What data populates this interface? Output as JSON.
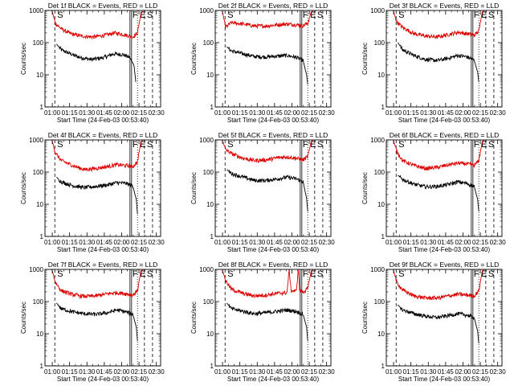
{
  "figure": {
    "ylabel": "Counts/sec",
    "xlabel": "Start Time (24-Feb-03 00:53:40)",
    "ytick_labels": [
      "1",
      "10",
      "100",
      "1000"
    ],
    "xtick_labels": [
      "01:00",
      "01:15",
      "01:30",
      "01:45",
      "02:00",
      "02:15",
      "02:30"
    ],
    "event_labels": {
      "start": "S",
      "flare": "F",
      "end": "E"
    },
    "colors": {
      "events": "#000000",
      "lld": "#dd0000",
      "axis": "#000000"
    }
  },
  "chart_data": [
    {
      "type": "line",
      "title": "Det 1f BLACK = Events, RED = LLD",
      "x_unit": "minutes after 00:53:40",
      "xlim": [
        0,
        100
      ],
      "ylim": [
        1,
        1000
      ],
      "yscale": "log",
      "events": {
        "S": 8.5,
        "F": 73.5,
        "E": 80,
        "S2": 86
      },
      "series": [
        {
          "name": "Events",
          "values": [
            [
              10,
              90
            ],
            [
              14,
              60
            ],
            [
              22,
              45
            ],
            [
              30,
              35
            ],
            [
              40,
              30
            ],
            [
              50,
              34
            ],
            [
              60,
              45
            ],
            [
              68,
              42
            ],
            [
              73,
              35
            ],
            [
              77,
              20
            ],
            [
              78.5,
              6
            ]
          ]
        },
        {
          "name": "LLD",
          "values": [
            [
              6,
              1000
            ],
            [
              9,
              400
            ],
            [
              14,
              270
            ],
            [
              22,
              190
            ],
            [
              32,
              160
            ],
            [
              42,
              150
            ],
            [
              52,
              170
            ],
            [
              60,
              200
            ],
            [
              68,
              180
            ],
            [
              76,
              150
            ],
            [
              80,
              200
            ],
            [
              83,
              800
            ],
            [
              85,
              1000
            ]
          ]
        }
      ]
    },
    {
      "type": "line",
      "title": "Det 2f BLACK = Events, RED = LLD",
      "x_unit": "minutes after 00:53:40",
      "xlim": [
        0,
        100
      ],
      "ylim": [
        1,
        1000
      ],
      "yscale": "log",
      "events": {
        "S": 8.5,
        "F": 73.5,
        "E": 80,
        "S2": 86
      },
      "series": [
        {
          "name": "Events",
          "values": [
            [
              10,
              75
            ],
            [
              14,
              55
            ],
            [
              24,
              45
            ],
            [
              34,
              37
            ],
            [
              44,
              36
            ],
            [
              54,
              38
            ],
            [
              62,
              40
            ],
            [
              70,
              35
            ],
            [
              76,
              28
            ],
            [
              79,
              10
            ],
            [
              80,
              5
            ]
          ]
        },
        {
          "name": "LLD",
          "values": [
            [
              6,
              1000
            ],
            [
              9,
              300
            ],
            [
              14,
              420
            ],
            [
              24,
              380
            ],
            [
              34,
              330
            ],
            [
              44,
              330
            ],
            [
              54,
              360
            ],
            [
              62,
              380
            ],
            [
              70,
              360
            ],
            [
              76,
              340
            ],
            [
              80,
              400
            ],
            [
              83,
              900
            ],
            [
              85,
              1000
            ]
          ]
        }
      ]
    },
    {
      "type": "line",
      "title": "Det 3f BLACK = Events, RED = LLD",
      "x_unit": "minutes after 00:53:40",
      "xlim": [
        0,
        100
      ],
      "ylim": [
        1,
        1000
      ],
      "yscale": "log",
      "events": {
        "S": 8.5,
        "F": 73.5,
        "E": 80,
        "S2": 86
      },
      "series": [
        {
          "name": "Events",
          "values": [
            [
              10,
              100
            ],
            [
              14,
              60
            ],
            [
              24,
              40
            ],
            [
              34,
              30
            ],
            [
              44,
              28
            ],
            [
              54,
              33
            ],
            [
              62,
              40
            ],
            [
              70,
              36
            ],
            [
              76,
              28
            ],
            [
              79,
              12
            ],
            [
              80,
              6
            ]
          ]
        },
        {
          "name": "LLD",
          "values": [
            [
              6,
              1000
            ],
            [
              9,
              450
            ],
            [
              14,
              300
            ],
            [
              24,
              190
            ],
            [
              34,
              160
            ],
            [
              44,
              150
            ],
            [
              54,
              180
            ],
            [
              62,
              210
            ],
            [
              70,
              190
            ],
            [
              76,
              170
            ],
            [
              80,
              230
            ],
            [
              83,
              900
            ],
            [
              85,
              1000
            ]
          ]
        }
      ]
    },
    {
      "type": "line",
      "title": "Det 4f BLACK = Events, RED = LLD",
      "x_unit": "minutes after 00:53:40",
      "xlim": [
        0,
        100
      ],
      "ylim": [
        1,
        1000
      ],
      "yscale": "log",
      "events": {
        "S": 8.5,
        "F": 73.5,
        "E": 80,
        "S2": 86
      },
      "series": [
        {
          "name": "Events",
          "values": [
            [
              10,
              70
            ],
            [
              14,
              50
            ],
            [
              24,
              38
            ],
            [
              34,
              33
            ],
            [
              44,
              36
            ],
            [
              54,
              40
            ],
            [
              62,
              47
            ],
            [
              70,
              45
            ],
            [
              76,
              36
            ],
            [
              79,
              14
            ],
            [
              80,
              5
            ]
          ]
        },
        {
          "name": "LLD",
          "values": [
            [
              6,
              1000
            ],
            [
              9,
              400
            ],
            [
              14,
              230
            ],
            [
              24,
              160
            ],
            [
              34,
              120
            ],
            [
              44,
              130
            ],
            [
              54,
              150
            ],
            [
              62,
              170
            ],
            [
              70,
              160
            ],
            [
              76,
              150
            ],
            [
              80,
              210
            ],
            [
              83,
              900
            ],
            [
              85,
              1000
            ]
          ]
        }
      ]
    },
    {
      "type": "line",
      "title": "Det 5f BLACK = Events, RED = LLD",
      "x_unit": "minutes after 00:53:40",
      "xlim": [
        0,
        100
      ],
      "ylim": [
        1,
        1000
      ],
      "yscale": "log",
      "events": {
        "S": 8.5,
        "F": 73.5,
        "E": 80,
        "S2": 86
      },
      "series": [
        {
          "name": "Events",
          "values": [
            [
              10,
              120
            ],
            [
              14,
              90
            ],
            [
              24,
              70
            ],
            [
              34,
              55
            ],
            [
              44,
              55
            ],
            [
              54,
              62
            ],
            [
              62,
              70
            ],
            [
              70,
              62
            ],
            [
              76,
              50
            ],
            [
              79,
              15
            ],
            [
              80,
              6
            ]
          ]
        },
        {
          "name": "LLD",
          "values": [
            [
              6,
              1000
            ],
            [
              9,
              500
            ],
            [
              14,
              380
            ],
            [
              24,
              270
            ],
            [
              34,
              230
            ],
            [
              44,
              240
            ],
            [
              54,
              280
            ],
            [
              62,
              300
            ],
            [
              70,
              270
            ],
            [
              76,
              240
            ],
            [
              80,
              300
            ],
            [
              83,
              900
            ],
            [
              85,
              1000
            ]
          ]
        }
      ]
    },
    {
      "type": "line",
      "title": "Det 6f BLACK = Events, RED = LLD",
      "x_unit": "minutes after 00:53:40",
      "xlim": [
        0,
        100
      ],
      "ylim": [
        1,
        1000
      ],
      "yscale": "log",
      "events": {
        "S": 8.5,
        "F": 73.5,
        "E": 80,
        "S2": 86
      },
      "series": [
        {
          "name": "Events",
          "values": [
            [
              10,
              80
            ],
            [
              14,
              60
            ],
            [
              24,
              42
            ],
            [
              34,
              35
            ],
            [
              44,
              36
            ],
            [
              54,
              42
            ],
            [
              62,
              50
            ],
            [
              70,
              44
            ],
            [
              76,
              36
            ],
            [
              79,
              14
            ],
            [
              80,
              6
            ]
          ]
        },
        {
          "name": "LLD",
          "values": [
            [
              6,
              1000
            ],
            [
              9,
              450
            ],
            [
              14,
              230
            ],
            [
              24,
              160
            ],
            [
              34,
              130
            ],
            [
              44,
              140
            ],
            [
              54,
              170
            ],
            [
              62,
              190
            ],
            [
              70,
              180
            ],
            [
              76,
              160
            ],
            [
              80,
              230
            ],
            [
              83,
              900
            ],
            [
              85,
              1000
            ]
          ]
        }
      ]
    },
    {
      "type": "line",
      "title": "Det 7f BLACK = Events, RED = LLD",
      "x_unit": "minutes after 00:53:40",
      "xlim": [
        0,
        100
      ],
      "ylim": [
        1,
        1000
      ],
      "yscale": "log",
      "events": {
        "S": 8.5,
        "F": 73.5,
        "E": 80,
        "S2": 86
      },
      "series": [
        {
          "name": "Events",
          "values": [
            [
              10,
              90
            ],
            [
              14,
              60
            ],
            [
              24,
              48
            ],
            [
              34,
              42
            ],
            [
              44,
              40
            ],
            [
              54,
              45
            ],
            [
              62,
              55
            ],
            [
              70,
              48
            ],
            [
              76,
              40
            ],
            [
              79,
              16
            ],
            [
              80,
              6
            ]
          ]
        },
        {
          "name": "LLD",
          "values": [
            [
              6,
              1000
            ],
            [
              9,
              400
            ],
            [
              14,
              220
            ],
            [
              24,
              165
            ],
            [
              34,
              145
            ],
            [
              44,
              150
            ],
            [
              54,
              175
            ],
            [
              62,
              190
            ],
            [
              70,
              175
            ],
            [
              76,
              160
            ],
            [
              80,
              220
            ],
            [
              83,
              900
            ],
            [
              85,
              1000
            ]
          ]
        }
      ]
    },
    {
      "type": "line",
      "title": "Det 8f BLACK = Events, RED = LLD",
      "x_unit": "minutes after 00:53:40",
      "xlim": [
        0,
        100
      ],
      "ylim": [
        1,
        1000
      ],
      "yscale": "log",
      "events": {
        "S": 8.5,
        "F": 73.5,
        "E": 80,
        "S2": 86
      },
      "series": [
        {
          "name": "Events",
          "values": [
            [
              10,
              90
            ],
            [
              14,
              60
            ],
            [
              24,
              50
            ],
            [
              34,
              42
            ],
            [
              44,
              45
            ],
            [
              54,
              50
            ],
            [
              62,
              55
            ],
            [
              70,
              50
            ],
            [
              76,
              40
            ],
            [
              79,
              16
            ],
            [
              80,
              6
            ]
          ]
        },
        {
          "name": "LLD",
          "values": [
            [
              6,
              1000
            ],
            [
              9,
              450
            ],
            [
              14,
              240
            ],
            [
              24,
              180
            ],
            [
              34,
              150
            ],
            [
              44,
              160
            ],
            [
              54,
              180
            ],
            [
              62,
              190
            ],
            [
              64,
              1000
            ],
            [
              65.5,
              220
            ],
            [
              70,
              210
            ],
            [
              72,
              1000
            ],
            [
              73,
              220
            ],
            [
              76,
              200
            ],
            [
              80,
              250
            ],
            [
              83,
              900
            ],
            [
              85,
              1000
            ]
          ]
        }
      ]
    },
    {
      "type": "line",
      "title": "Det 9f BLACK = Events, RED = LLD",
      "x_unit": "minutes after 00:53:40",
      "xlim": [
        0,
        100
      ],
      "ylim": [
        1,
        1000
      ],
      "yscale": "log",
      "events": {
        "S": 8.5,
        "F": 73.5,
        "E": 80,
        "S2": 86
      },
      "series": [
        {
          "name": "Events",
          "values": [
            [
              10,
              80
            ],
            [
              14,
              55
            ],
            [
              24,
              42
            ],
            [
              34,
              35
            ],
            [
              44,
              32
            ],
            [
              54,
              37
            ],
            [
              62,
              42
            ],
            [
              70,
              38
            ],
            [
              76,
              32
            ],
            [
              79,
              12
            ],
            [
              80,
              5
            ]
          ]
        },
        {
          "name": "LLD",
          "values": [
            [
              6,
              1000
            ],
            [
              9,
              400
            ],
            [
              14,
              230
            ],
            [
              24,
              150
            ],
            [
              34,
              130
            ],
            [
              44,
              130
            ],
            [
              54,
              150
            ],
            [
              62,
              170
            ],
            [
              70,
              160
            ],
            [
              76,
              150
            ],
            [
              80,
              220
            ],
            [
              83,
              900
            ],
            [
              85,
              1000
            ]
          ]
        }
      ]
    }
  ]
}
